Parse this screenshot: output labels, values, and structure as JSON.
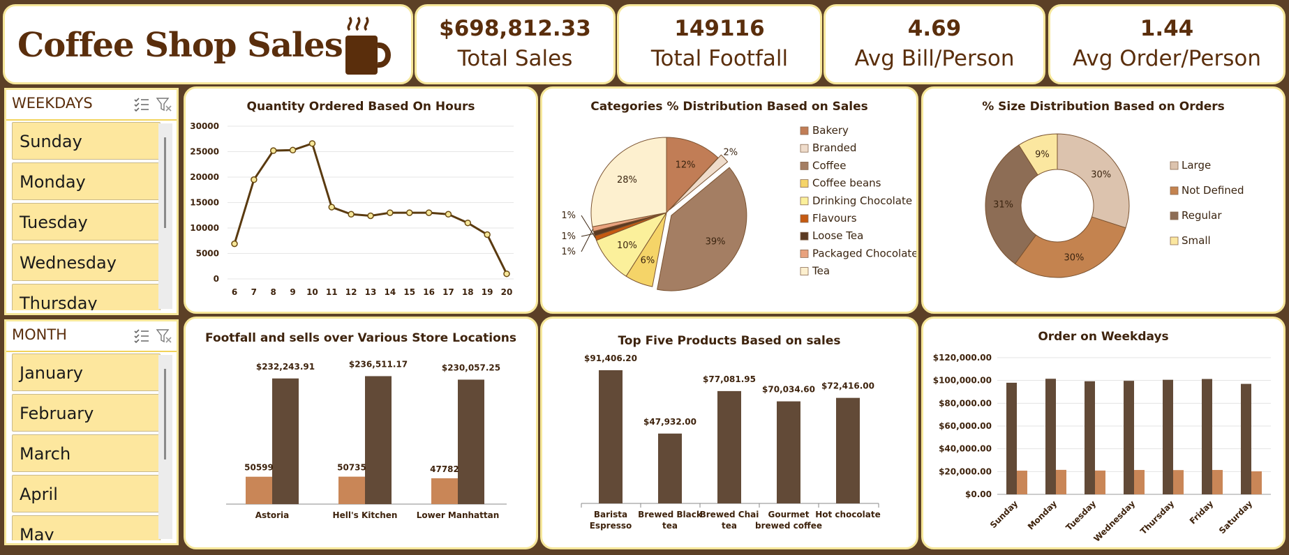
{
  "app": {
    "title": "Coffee Shop Sales"
  },
  "kpis": [
    {
      "value": "$698,812.33",
      "label": "Total Sales"
    },
    {
      "value": "149116",
      "label": "Total Footfall"
    },
    {
      "value": "4.69",
      "label": "Avg Bill/Person"
    },
    {
      "value": "1.44",
      "label": "Avg Order/Person"
    }
  ],
  "slicers": {
    "weekdays": {
      "title": "WEEKDAYS",
      "items": [
        "Sunday",
        "Monday",
        "Tuesday",
        "Wednesday",
        "Thursday"
      ]
    },
    "month": {
      "title": "MONTH",
      "items": [
        "January",
        "February",
        "March",
        "April",
        "May"
      ]
    }
  },
  "colors": {
    "background": "#5c4026",
    "card_border": "#f6e79a",
    "title_text": "#5a2e0c",
    "dark_brown": "#624a37",
    "light_brown": "#c98657",
    "slicer_item": "#fde79e"
  },
  "chart_data": [
    {
      "type": "line",
      "title": "Quantity Ordered Based On Hours",
      "x": [
        6,
        7,
        8,
        9,
        10,
        11,
        12,
        13,
        14,
        15,
        16,
        17,
        18,
        19,
        20
      ],
      "values": [
        6900,
        19500,
        25200,
        25300,
        26600,
        14100,
        12700,
        12400,
        13000,
        13000,
        13000,
        12700,
        11000,
        8700,
        1000
      ],
      "ylim": [
        0,
        30000
      ],
      "yticks": [
        "30000",
        "25000",
        "20000",
        "15000",
        "10000",
        "5000",
        "0"
      ],
      "grid": true
    },
    {
      "type": "pie",
      "title": "Categories % Distribution Based on Sales",
      "legend_position": "right",
      "slices": [
        {
          "name": "Bakery",
          "value": 12,
          "label": "12%",
          "color": "#c17d56"
        },
        {
          "name": "Branded",
          "value": 2,
          "label": "2%",
          "color": "#efdccb"
        },
        {
          "name": "Coffee",
          "value": 39,
          "label": "39%",
          "color": "#a47e63"
        },
        {
          "name": "Coffee beans",
          "value": 6,
          "label": "6%",
          "color": "#f5d468"
        },
        {
          "name": "Drinking Chocolate",
          "value": 10,
          "label": "10%",
          "color": "#fbf09b"
        },
        {
          "name": "Flavours",
          "value": 1,
          "label": "1%",
          "color": "#c55a11"
        },
        {
          "name": "Loose Tea",
          "value": 1,
          "label": "1%",
          "color": "#5b3a22"
        },
        {
          "name": "Packaged Chocolate",
          "value": 1,
          "label": "1%",
          "color": "#e8a27e"
        },
        {
          "name": "Tea",
          "value": 28,
          "label": "28%",
          "color": "#fdf0cf"
        }
      ]
    },
    {
      "type": "pie",
      "title": "% Size Distribution Based on Orders",
      "donut": true,
      "legend_position": "right",
      "slices": [
        {
          "name": "Large",
          "value": 30,
          "label": "30%",
          "color": "#dcc3ae"
        },
        {
          "name": "Not Defined",
          "value": 30,
          "label": "30%",
          "color": "#c4834f"
        },
        {
          "name": "Regular",
          "value": 31,
          "label": "31%",
          "color": "#8d6d55"
        },
        {
          "name": "Small",
          "value": 9,
          "label": "9%",
          "color": "#fbe7a0"
        }
      ]
    },
    {
      "type": "bar",
      "title": "Footfall and sells over Various Store Locations",
      "categories": [
        "Astoria",
        "Hell's Kitchen",
        "Lower Manhattan"
      ],
      "series": [
        {
          "values": [
            50599,
            50735,
            47782
          ],
          "labels": [
            "50599",
            "50735",
            "47782"
          ],
          "color": "#c98657"
        },
        {
          "values": [
            232243.91,
            236511.17,
            230057.25
          ],
          "labels": [
            "$232,243.91",
            "$236,511.17",
            "$230,057.25"
          ],
          "color": "#624a37"
        }
      ],
      "ylim": [
        0,
        250000
      ]
    },
    {
      "type": "bar",
      "title": "Top Five Products Based on sales",
      "categories": [
        "Barista Espresso",
        "Brewed Black tea",
        "Brewed Chai tea",
        "Gourmet brewed coffee",
        "Hot chocolate"
      ],
      "values": [
        91406.2,
        47932.0,
        77081.95,
        70034.6,
        72416.0
      ],
      "labels": [
        "$91,406.20",
        "$47,932.00",
        "$77,081.95",
        "$70,034.60",
        "$72,416.00"
      ],
      "ylim": [
        0,
        100000
      ]
    },
    {
      "type": "bar",
      "title": "Order on Weekdays",
      "categories": [
        "Sunday",
        "Monday",
        "Tuesday",
        "Wednesday",
        "Thursday",
        "Friday",
        "Saturday"
      ],
      "series": [
        {
          "values": [
            98000,
            101500,
            99300,
            99700,
            100600,
            101300,
            97000
          ],
          "color": "#624a37"
        },
        {
          "values": [
            20800,
            21500,
            20900,
            21400,
            21300,
            21400,
            20200
          ],
          "color": "#c98657"
        }
      ],
      "ylim": [
        0,
        120000
      ],
      "yticks": [
        "$120,000.00",
        "$100,000.00",
        "$80,000.00",
        "$60,000.00",
        "$40,000.00",
        "$20,000.00",
        "$0.00"
      ],
      "grid": true
    }
  ]
}
